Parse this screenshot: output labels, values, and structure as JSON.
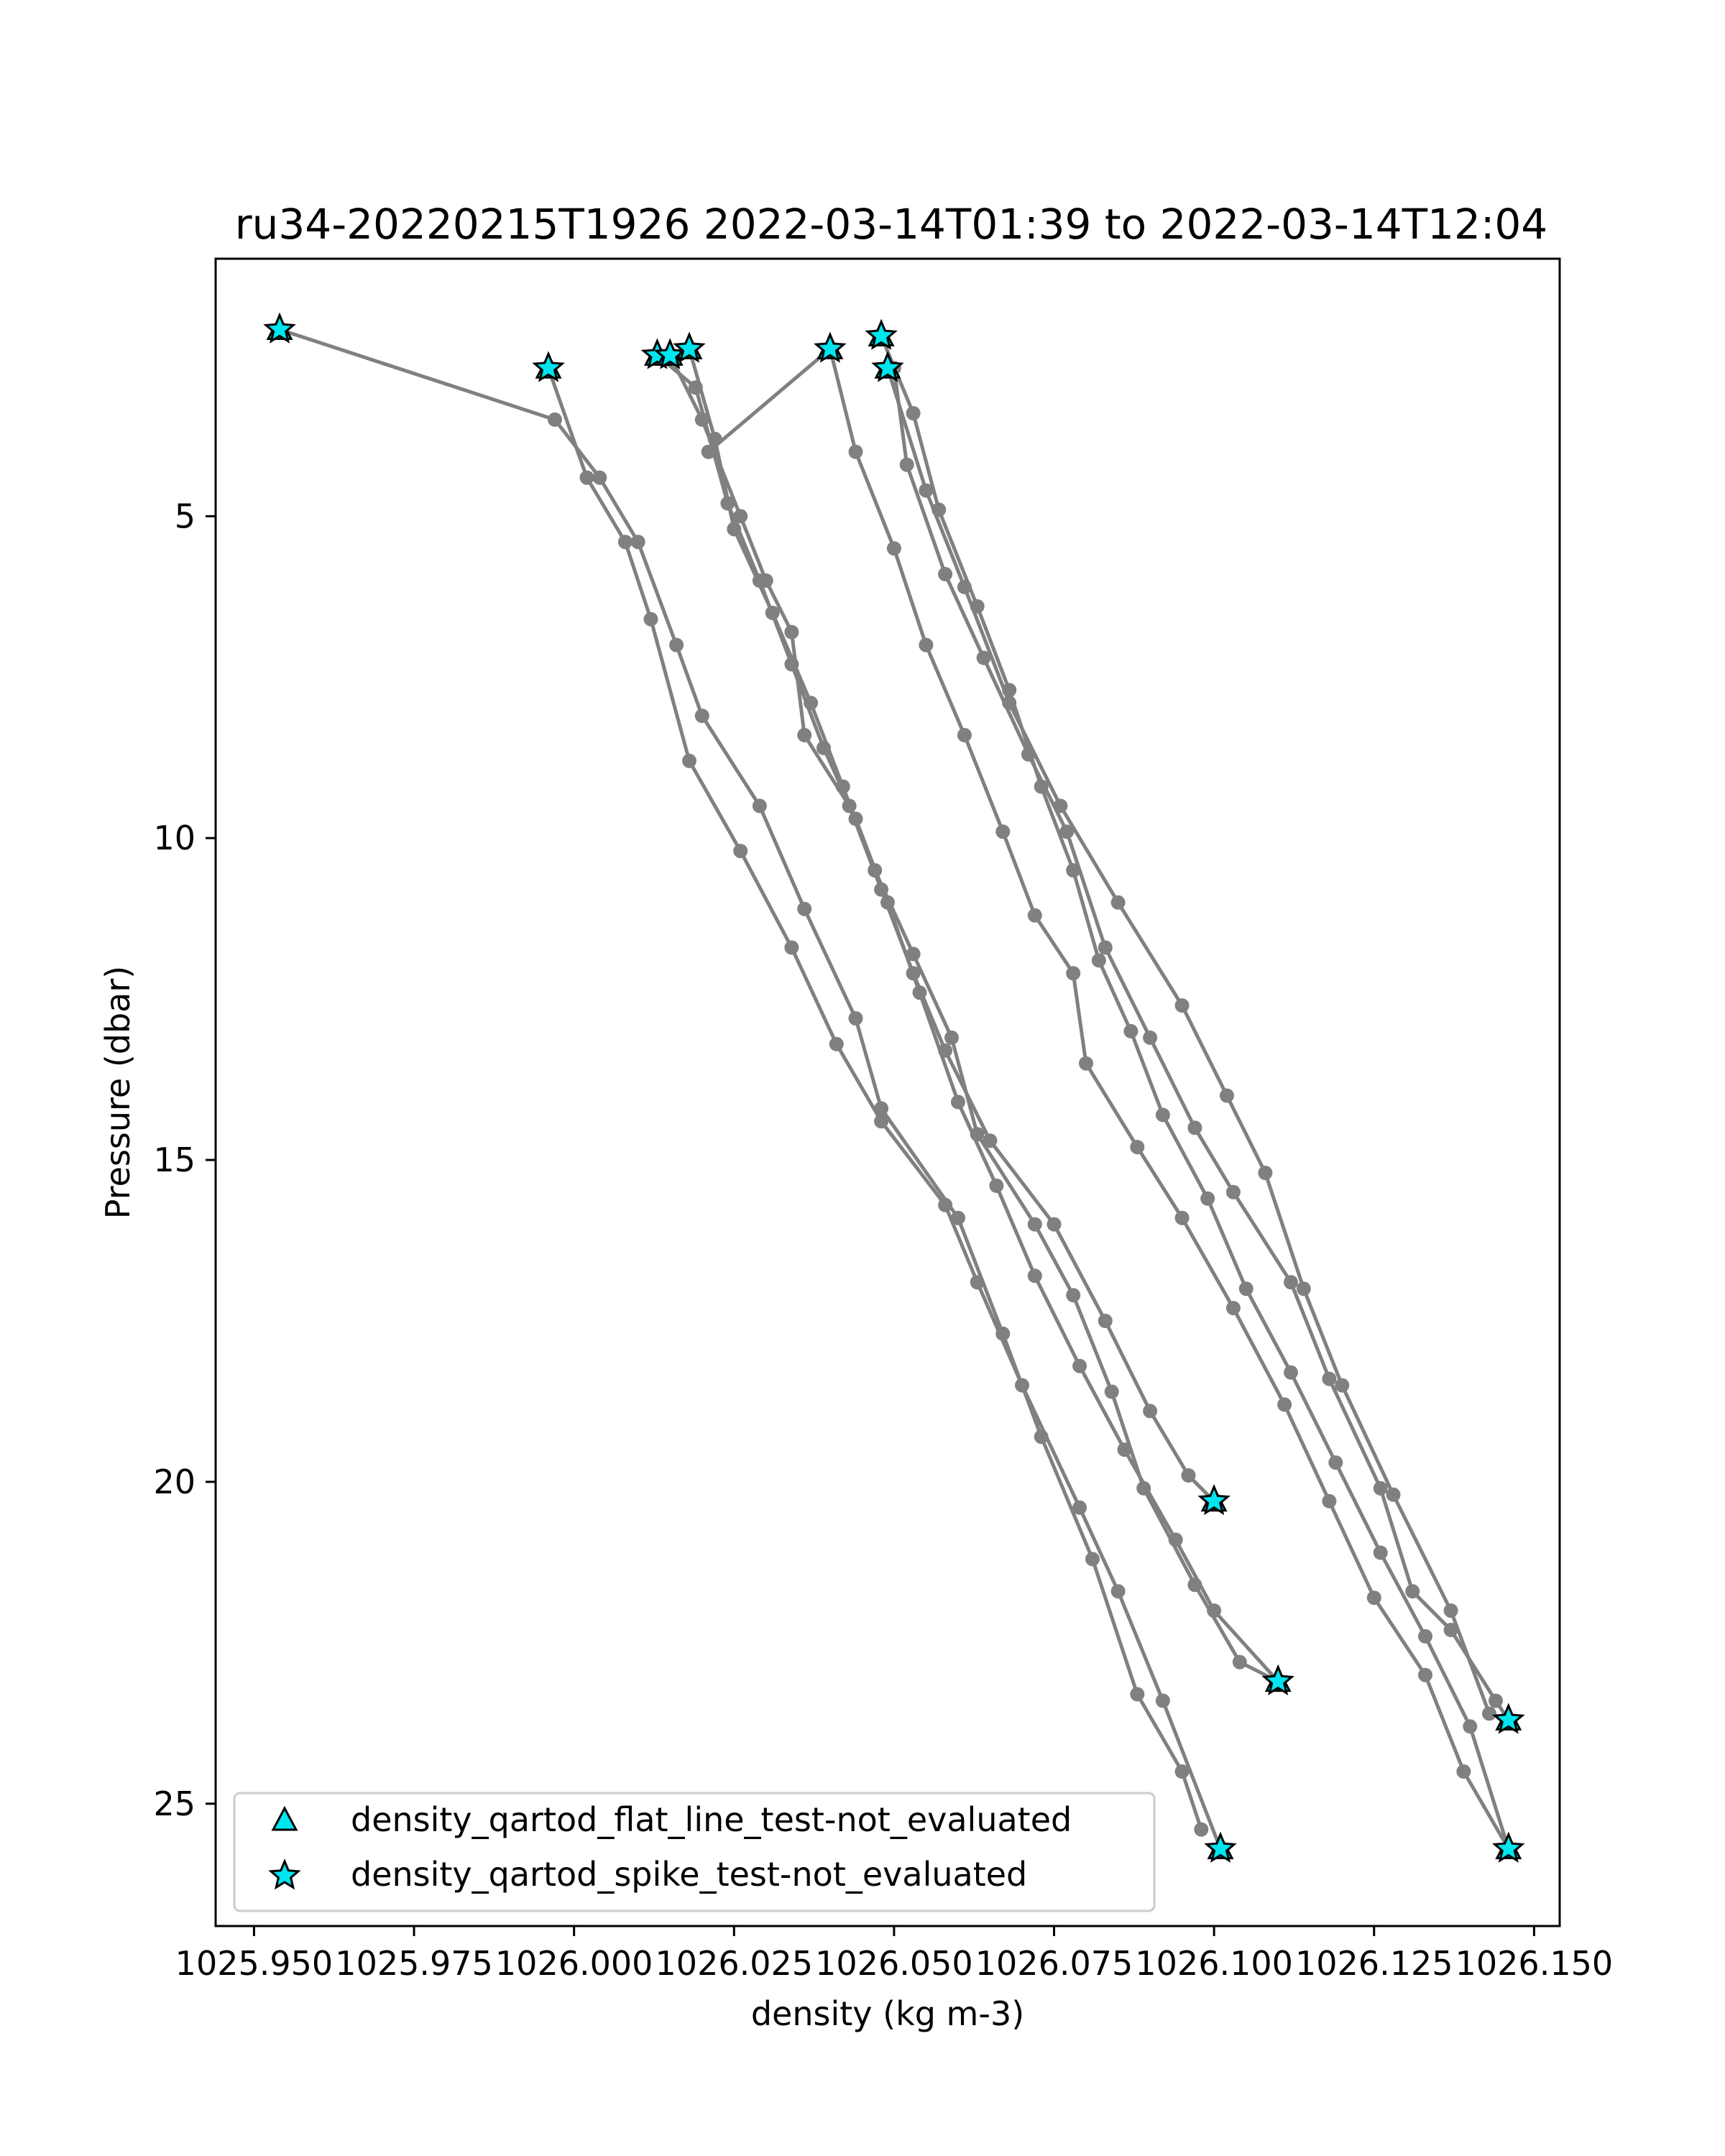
{
  "chart_data": {
    "type": "scatter",
    "title": "ru34-20220215T1926 2022-03-14T01:39 to 2022-03-14T12:04",
    "xlabel": "density (kg m-3)",
    "ylabel": "Pressure (dbar)",
    "xlim": [
      1025.944,
      1026.154
    ],
    "ylim": [
      26.9,
      1.0
    ],
    "y_inverted": true,
    "grid": false,
    "x_ticks": [
      {
        "value": 1025.95,
        "label": "1025.950"
      },
      {
        "value": 1025.975,
        "label": "1025.975"
      },
      {
        "value": 1026.0,
        "label": "1026.000"
      },
      {
        "value": 1026.025,
        "label": "1026.025"
      },
      {
        "value": 1026.05,
        "label": "1026.050"
      },
      {
        "value": 1026.075,
        "label": "1026.075"
      },
      {
        "value": 1026.1,
        "label": "1026.100"
      },
      {
        "value": 1026.125,
        "label": "1026.125"
      },
      {
        "value": 1026.15,
        "label": "1026.150"
      }
    ],
    "y_ticks": [
      {
        "value": 5,
        "label": "5"
      },
      {
        "value": 10,
        "label": "10"
      },
      {
        "value": 15,
        "label": "15"
      },
      {
        "value": 20,
        "label": "20"
      },
      {
        "value": 25,
        "label": "25"
      }
    ],
    "line_color": "#808080",
    "marker_color": "#00e5ee",
    "legend": {
      "placement": "lower-left",
      "entries": [
        {
          "label": "density_qartod_flat_line_test-not_evaluated",
          "marker": "triangle"
        },
        {
          "label": "density_qartod_spike_test-not_evaluated",
          "marker": "star"
        }
      ]
    },
    "profiles": [
      {
        "points": [
          [
            1025.954,
            2.1
          ],
          [
            1025.997,
            3.5
          ],
          [
            1026.004,
            4.4
          ],
          [
            1026.01,
            5.4
          ],
          [
            1026.016,
            7.0
          ],
          [
            1026.02,
            8.1
          ],
          [
            1026.029,
            9.5
          ],
          [
            1026.036,
            11.1
          ],
          [
            1026.044,
            12.8
          ],
          [
            1026.048,
            14.2
          ],
          [
            1026.06,
            15.9
          ],
          [
            1026.067,
            17.7
          ],
          [
            1026.073,
            19.3
          ],
          [
            1026.081,
            21.2
          ],
          [
            1026.088,
            23.3
          ],
          [
            1026.095,
            24.5
          ],
          [
            1026.098,
            25.4
          ]
        ]
      },
      {
        "points": [
          [
            1025.996,
            2.7
          ],
          [
            1026.002,
            4.4
          ],
          [
            1026.008,
            5.4
          ],
          [
            1026.012,
            6.6
          ],
          [
            1026.018,
            8.8
          ],
          [
            1026.026,
            10.2
          ],
          [
            1026.034,
            11.7
          ],
          [
            1026.041,
            13.2
          ],
          [
            1026.048,
            14.4
          ],
          [
            1026.058,
            15.7
          ],
          [
            1026.063,
            16.9
          ],
          [
            1026.07,
            18.5
          ],
          [
            1026.079,
            20.4
          ],
          [
            1026.085,
            21.7
          ],
          [
            1026.092,
            23.4
          ],
          [
            1026.101,
            25.7
          ]
        ]
      },
      {
        "points": [
          [
            1026.015,
            2.5
          ],
          [
            1026.02,
            3.5
          ],
          [
            1026.026,
            5.0
          ],
          [
            1026.03,
            6.0
          ],
          [
            1026.034,
            6.8
          ],
          [
            1026.036,
            8.4
          ],
          [
            1026.043,
            9.5
          ],
          [
            1026.048,
            10.8
          ],
          [
            1026.053,
            12.1
          ],
          [
            1026.058,
            13.3
          ],
          [
            1026.065,
            14.7
          ],
          [
            1026.075,
            16.0
          ],
          [
            1026.083,
            17.5
          ],
          [
            1026.09,
            18.9
          ],
          [
            1026.096,
            19.9
          ],
          [
            1026.1,
            20.3
          ]
        ]
      },
      {
        "points": [
          [
            1026.013,
            2.5
          ],
          [
            1026.019,
            3.0
          ],
          [
            1026.024,
            4.8
          ],
          [
            1026.029,
            6.0
          ],
          [
            1026.034,
            7.3
          ],
          [
            1026.039,
            8.6
          ],
          [
            1026.044,
            9.7
          ],
          [
            1026.049,
            11.0
          ],
          [
            1026.054,
            12.4
          ],
          [
            1026.06,
            14.1
          ],
          [
            1026.066,
            15.4
          ],
          [
            1026.072,
            16.8
          ],
          [
            1026.079,
            18.2
          ],
          [
            1026.086,
            19.5
          ],
          [
            1026.094,
            20.9
          ],
          [
            1026.1,
            22.0
          ],
          [
            1026.11,
            23.1
          ]
        ]
      },
      {
        "points": [
          [
            1026.018,
            2.4
          ],
          [
            1026.022,
            3.8
          ],
          [
            1026.025,
            5.2
          ],
          [
            1026.031,
            6.5
          ],
          [
            1026.037,
            7.9
          ],
          [
            1026.042,
            9.2
          ],
          [
            1026.047,
            10.5
          ],
          [
            1026.053,
            11.8
          ],
          [
            1026.059,
            13.1
          ],
          [
            1026.063,
            14.6
          ],
          [
            1026.072,
            16.0
          ],
          [
            1026.078,
            17.1
          ],
          [
            1026.084,
            18.6
          ],
          [
            1026.089,
            20.1
          ],
          [
            1026.097,
            21.6
          ],
          [
            1026.104,
            22.8
          ],
          [
            1026.11,
            23.1
          ]
        ]
      },
      {
        "points": [
          [
            1026.021,
            4.0
          ],
          [
            1026.04,
            2.4
          ],
          [
            1026.044,
            4.0
          ],
          [
            1026.05,
            5.5
          ],
          [
            1026.055,
            7.0
          ],
          [
            1026.061,
            8.4
          ],
          [
            1026.067,
            9.9
          ],
          [
            1026.072,
            11.2
          ],
          [
            1026.078,
            12.1
          ],
          [
            1026.08,
            13.5
          ],
          [
            1026.088,
            14.8
          ],
          [
            1026.095,
            15.9
          ],
          [
            1026.103,
            17.3
          ],
          [
            1026.111,
            18.8
          ],
          [
            1026.118,
            20.3
          ],
          [
            1026.125,
            21.8
          ],
          [
            1026.133,
            23.0
          ],
          [
            1026.139,
            24.5
          ],
          [
            1026.146,
            25.7
          ]
        ]
      },
      {
        "points": [
          [
            1026.048,
            2.2
          ],
          [
            1026.053,
            3.4
          ],
          [
            1026.057,
            4.9
          ],
          [
            1026.063,
            6.4
          ],
          [
            1026.068,
            7.7
          ],
          [
            1026.073,
            9.2
          ],
          [
            1026.078,
            10.5
          ],
          [
            1026.082,
            11.9
          ],
          [
            1026.087,
            13.0
          ],
          [
            1026.092,
            14.3
          ],
          [
            1026.099,
            15.6
          ],
          [
            1026.105,
            17.0
          ],
          [
            1026.112,
            18.3
          ],
          [
            1026.119,
            19.7
          ],
          [
            1026.126,
            21.1
          ],
          [
            1026.133,
            22.4
          ],
          [
            1026.14,
            23.8
          ],
          [
            1026.146,
            25.7
          ]
        ]
      },
      {
        "points": [
          [
            1026.049,
            2.7
          ],
          [
            1026.055,
            4.6
          ],
          [
            1026.061,
            6.1
          ],
          [
            1026.068,
            7.9
          ],
          [
            1026.076,
            9.5
          ],
          [
            1026.085,
            11.0
          ],
          [
            1026.095,
            12.6
          ],
          [
            1026.102,
            14.0
          ],
          [
            1026.108,
            15.2
          ],
          [
            1026.114,
            17.0
          ],
          [
            1026.12,
            18.5
          ],
          [
            1026.128,
            20.2
          ],
          [
            1026.137,
            22.0
          ],
          [
            1026.143,
            23.6
          ],
          [
            1026.146,
            23.7
          ]
        ]
      },
      {
        "points": [
          [
            1026.05,
            2.7
          ],
          [
            1026.052,
            4.2
          ],
          [
            1026.058,
            5.9
          ],
          [
            1026.064,
            7.2
          ],
          [
            1026.071,
            8.7
          ],
          [
            1026.077,
            9.9
          ],
          [
            1026.083,
            11.7
          ],
          [
            1026.09,
            13.1
          ],
          [
            1026.097,
            14.5
          ],
          [
            1026.103,
            15.5
          ],
          [
            1026.112,
            16.9
          ],
          [
            1026.118,
            18.4
          ],
          [
            1026.126,
            20.1
          ],
          [
            1026.131,
            21.7
          ],
          [
            1026.137,
            22.3
          ],
          [
            1026.144,
            23.4
          ],
          [
            1026.146,
            23.7
          ]
        ]
      }
    ],
    "flag_points": [
      [
        1025.954,
        2.1
      ],
      [
        1025.996,
        2.7
      ],
      [
        1026.013,
        2.5
      ],
      [
        1026.015,
        2.5
      ],
      [
        1026.018,
        2.4
      ],
      [
        1026.04,
        2.4
      ],
      [
        1026.048,
        2.2
      ],
      [
        1026.049,
        2.7
      ],
      [
        1026.1,
        20.3
      ],
      [
        1026.11,
        23.1
      ],
      [
        1026.101,
        25.7
      ],
      [
        1026.146,
        25.7
      ],
      [
        1026.146,
        23.7
      ]
    ]
  }
}
